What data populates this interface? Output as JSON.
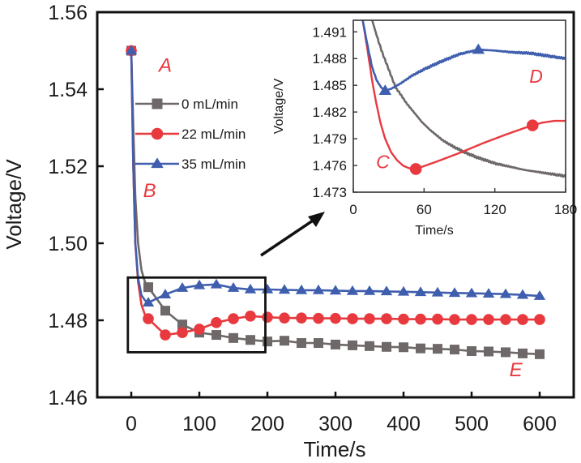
{
  "chart_data": [
    {
      "id": "main",
      "type": "line",
      "title": "",
      "xlabel": "Time/s",
      "ylabel": "Voltage/V",
      "xlim": [
        -50,
        650
      ],
      "ylim": [
        1.46,
        1.56
      ],
      "xticks": [
        0,
        100,
        200,
        300,
        400,
        500,
        600
      ],
      "xtick_labels": [
        "0",
        "100",
        "200",
        "300",
        "400",
        "500",
        "600"
      ],
      "yticks": [
        1.46,
        1.48,
        1.5,
        1.52,
        1.54,
        1.56
      ],
      "ytick_labels": [
        "1.46",
        "1.48",
        "1.50",
        "1.52",
        "1.54",
        "1.56"
      ],
      "grid": false,
      "legend": {
        "placement": "upper-left",
        "entries": [
          "0 mL/min",
          "22 mL/min",
          "35 mL/min"
        ]
      },
      "series": [
        {
          "name": "0 mL/min",
          "color": "#6e6868",
          "marker": "square",
          "x": [
            0,
            3,
            6,
            10,
            15,
            20,
            25,
            50,
            75,
            100,
            125,
            150,
            175,
            200,
            225,
            250,
            275,
            300,
            325,
            350,
            375,
            400,
            425,
            450,
            475,
            500,
            525,
            550,
            575,
            600
          ],
          "y": [
            1.55,
            1.53,
            1.512,
            1.5,
            1.493,
            1.49,
            1.4886,
            1.4825,
            1.4789,
            1.4768,
            1.4762,
            1.4754,
            1.4749,
            1.4745,
            1.4747,
            1.4741,
            1.4741,
            1.4737,
            1.4735,
            1.4733,
            1.4731,
            1.473,
            1.4727,
            1.4726,
            1.4724,
            1.472,
            1.4719,
            1.4717,
            1.4714,
            1.4712
          ]
        },
        {
          "name": "22 mL/min",
          "color": "#e8393f",
          "marker": "circle",
          "x": [
            0,
            3,
            6,
            10,
            15,
            20,
            25,
            50,
            75,
            100,
            125,
            150,
            175,
            200,
            225,
            250,
            275,
            300,
            325,
            350,
            375,
            400,
            425,
            450,
            475,
            500,
            525,
            550,
            575,
            600
          ],
          "y": [
            1.55,
            1.52,
            1.5,
            1.49,
            1.484,
            1.4815,
            1.4804,
            1.4762,
            1.4768,
            1.4777,
            1.4794,
            1.4804,
            1.4811,
            1.4808,
            1.4806,
            1.4806,
            1.4805,
            1.4805,
            1.4804,
            1.4804,
            1.4804,
            1.4803,
            1.4803,
            1.4803,
            1.4802,
            1.4802,
            1.4802,
            1.4802,
            1.4802,
            1.4802
          ]
        },
        {
          "name": "35 mL/min",
          "color": "#3f5fae",
          "marker": "triangle",
          "x": [
            0,
            3,
            6,
            10,
            15,
            20,
            25,
            50,
            75,
            100,
            125,
            150,
            175,
            200,
            225,
            250,
            275,
            300,
            325,
            350,
            375,
            400,
            425,
            450,
            475,
            500,
            525,
            550,
            575,
            600
          ],
          "y": [
            1.55,
            1.52,
            1.5,
            1.491,
            1.4865,
            1.4852,
            1.4846,
            1.4867,
            1.4884,
            1.4891,
            1.4893,
            1.4884,
            1.488,
            1.488,
            1.4879,
            1.4878,
            1.4878,
            1.4877,
            1.4876,
            1.4876,
            1.4875,
            1.4874,
            1.4873,
            1.4872,
            1.4871,
            1.487,
            1.4869,
            1.4868,
            1.4866,
            1.4863
          ]
        }
      ],
      "annotations": [
        {
          "text": "A",
          "x": 50,
          "y": 1.5445
        },
        {
          "text": "B",
          "x": 27,
          "y": 1.512
        },
        {
          "text": "E",
          "x": 565,
          "y": 1.4655
        }
      ],
      "zoom_box": {
        "x": [
          -5,
          197
        ],
        "y": [
          1.4717,
          1.4911
        ]
      }
    },
    {
      "id": "inset",
      "type": "line",
      "title": "",
      "xlabel": "Time/s",
      "ylabel": "Voltage/V",
      "xlim": [
        0,
        180
      ],
      "ylim": [
        1.473,
        1.4923
      ],
      "xticks": [
        0,
        60,
        120,
        180
      ],
      "xtick_labels": [
        "0",
        "60",
        "120",
        "180"
      ],
      "yticks": [
        1.473,
        1.476,
        1.479,
        1.482,
        1.485,
        1.488,
        1.491
      ],
      "ytick_labels": [
        "1.473",
        "1.476",
        "1.479",
        "1.482",
        "1.485",
        "1.488",
        "1.491"
      ],
      "grid": false,
      "series": [
        {
          "name": "0 mL/min",
          "color": "#6e6868",
          "marker": "none",
          "x": [
            16,
            20,
            25,
            30,
            36,
            39,
            45,
            50,
            58,
            65,
            76,
            85,
            94,
            105,
            121,
            135,
            145,
            160,
            170,
            180
          ],
          "y": [
            1.4923,
            1.4905,
            1.4885,
            1.4868,
            1.4847,
            1.4842,
            1.483,
            1.4822,
            1.4809,
            1.48,
            1.4788,
            1.4781,
            1.4775,
            1.4769,
            1.4762,
            1.4758,
            1.4755,
            1.4752,
            1.475,
            1.4748
          ]
        },
        {
          "name": "22 mL/min",
          "color": "#e8393f",
          "marker": "circle",
          "marker_x": [
            53,
            152
          ],
          "x": [
            8,
            12,
            16,
            19,
            23,
            27,
            32,
            37,
            42,
            47,
            53,
            70,
            90,
            110,
            130,
            145,
            152,
            160,
            170,
            180
          ],
          "y": [
            1.4923,
            1.489,
            1.4855,
            1.4833,
            1.4808,
            1.479,
            1.4775,
            1.4766,
            1.476,
            1.4757,
            1.4756,
            1.4764,
            1.4774,
            1.4785,
            1.4795,
            1.4802,
            1.4805,
            1.4808,
            1.481,
            1.481
          ]
        },
        {
          "name": "35 mL/min",
          "color": "#3f5fae",
          "marker": "triangle",
          "marker_x": [
            27,
            106
          ],
          "x": [
            8,
            12,
            16,
            20,
            24,
            27,
            32,
            40,
            50,
            60,
            75,
            90,
            106,
            120,
            135,
            150,
            165,
            180
          ],
          "y": [
            1.4923,
            1.4895,
            1.487,
            1.4855,
            1.4847,
            1.4844,
            1.4846,
            1.4852,
            1.4861,
            1.4868,
            1.4877,
            1.4885,
            1.489,
            1.4889,
            1.4887,
            1.4886,
            1.4883,
            1.488
          ]
        }
      ],
      "annotations": [
        {
          "text": "C",
          "x": 25,
          "y": 1.4757
        },
        {
          "text": "D",
          "x": 155,
          "y": 1.4853
        }
      ]
    }
  ]
}
